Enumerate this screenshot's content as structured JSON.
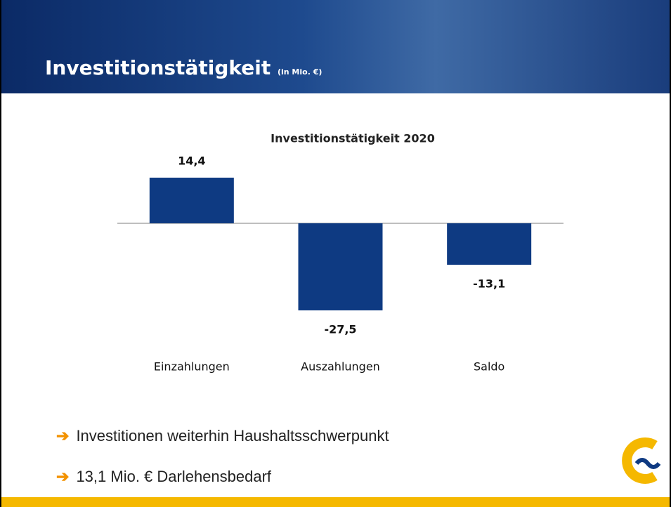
{
  "header": {
    "title": "Investitionstätigkeit",
    "unit": "(in Mio. €)"
  },
  "chart_data": {
    "type": "bar",
    "title": "Investitionstätigkeit 2020",
    "categories": [
      "Einzahlungen",
      "Auszahlungen",
      "Saldo"
    ],
    "values": [
      14.4,
      -27.5,
      -13.1
    ],
    "value_labels": [
      "14,4",
      "-27,5",
      "-13,1"
    ],
    "color": "#0e3a82"
  },
  "bullets": [
    "Investitionen weiterhin Haushaltsschwerpunkt",
    "13,1 Mio. € Darlehensbedarf"
  ]
}
